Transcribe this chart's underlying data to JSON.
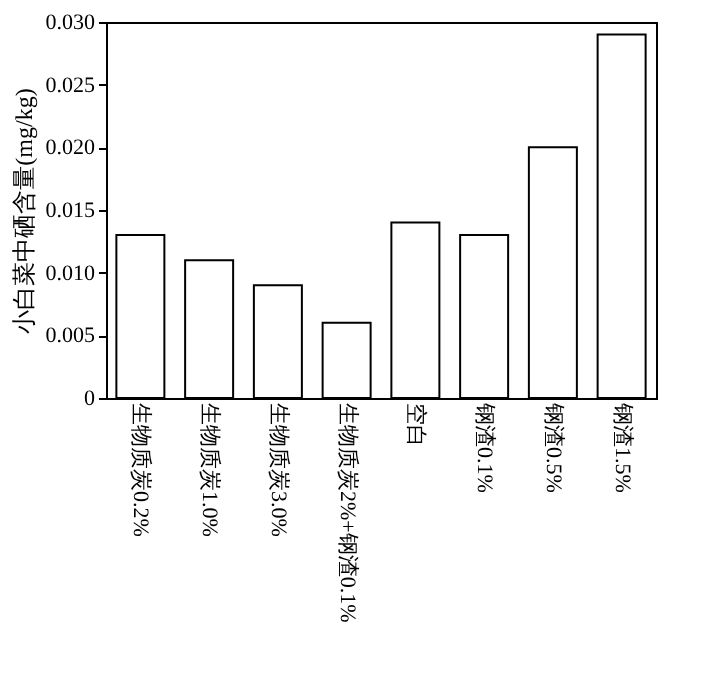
{
  "chart_data": {
    "type": "bar",
    "ylabel": "小白菜中硒含量(mg/kg)",
    "categories": [
      "生物质炭0.2%",
      "生物质炭1.0%",
      "生物质炭3.0%",
      "生物质炭2%+钢渣0.1%",
      "空白",
      "钢渣0.1%",
      "钢渣0.5%",
      "钢渣1.5%"
    ],
    "values": [
      0.013,
      0.011,
      0.009,
      0.006,
      0.014,
      0.013,
      0.02,
      0.029
    ],
    "color": "#ffffff",
    "ylim": [
      0,
      0.03
    ],
    "yticks": [
      0,
      {
        "value": 0.005,
        "label": "0.005"
      },
      {
        "value": 0.01,
        "label": "0.010"
      },
      {
        "value": 0.015,
        "label": "0.015"
      },
      {
        "value": 0.02,
        "label": "0.020"
      },
      {
        "value": 0.025,
        "label": "0.025"
      },
      {
        "value": 0.03,
        "label": "0.030"
      }
    ],
    "grid": false
  }
}
